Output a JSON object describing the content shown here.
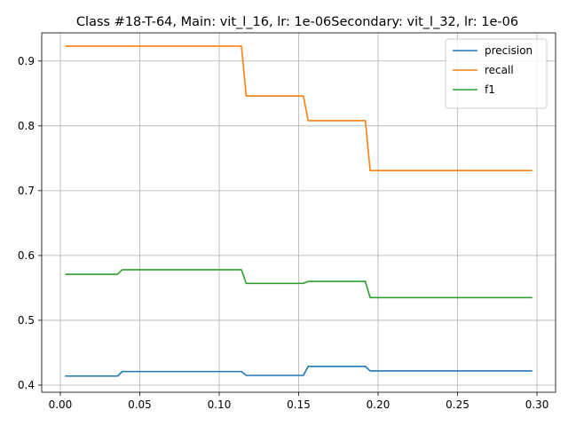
{
  "chart_data": {
    "type": "line",
    "title": "Class #18-T-64, Main: vit_l_16, lr: 1e-06Secondary: vit_l_32, lr: 1e-06",
    "xlabel": "",
    "ylabel": "",
    "xlim": [
      -0.0117,
      0.3117
    ],
    "ylim": [
      0.389,
      0.9435
    ],
    "xticks": [
      0.0,
      0.05,
      0.1,
      0.15,
      0.2,
      0.25,
      0.3
    ],
    "xtick_labels": [
      "0.00",
      "0.05",
      "0.10",
      "0.15",
      "0.20",
      "0.25",
      "0.30"
    ],
    "yticks": [
      0.4,
      0.5,
      0.6,
      0.7,
      0.8,
      0.9
    ],
    "ytick_labels": [
      "0.4",
      "0.5",
      "0.6",
      "0.7",
      "0.8",
      "0.9"
    ],
    "grid": true,
    "legend_position": "top-right",
    "series": [
      {
        "name": "precision",
        "color": "#1f77b4",
        "x": [
          0.003,
          0.036,
          0.039,
          0.114,
          0.117,
          0.153,
          0.156,
          0.192,
          0.195,
          0.297
        ],
        "y": [
          0.414,
          0.414,
          0.421,
          0.421,
          0.415,
          0.415,
          0.429,
          0.429,
          0.422,
          0.422
        ]
      },
      {
        "name": "recall",
        "color": "#ff7f0e",
        "x": [
          0.003,
          0.114,
          0.117,
          0.153,
          0.156,
          0.192,
          0.195,
          0.297
        ],
        "y": [
          0.923,
          0.923,
          0.846,
          0.846,
          0.808,
          0.808,
          0.731,
          0.731
        ]
      },
      {
        "name": "f1",
        "color": "#2ca02c",
        "x": [
          0.003,
          0.036,
          0.039,
          0.114,
          0.117,
          0.153,
          0.156,
          0.192,
          0.195,
          0.297
        ],
        "y": [
          0.571,
          0.571,
          0.578,
          0.578,
          0.557,
          0.557,
          0.56,
          0.56,
          0.535,
          0.535
        ]
      }
    ]
  }
}
